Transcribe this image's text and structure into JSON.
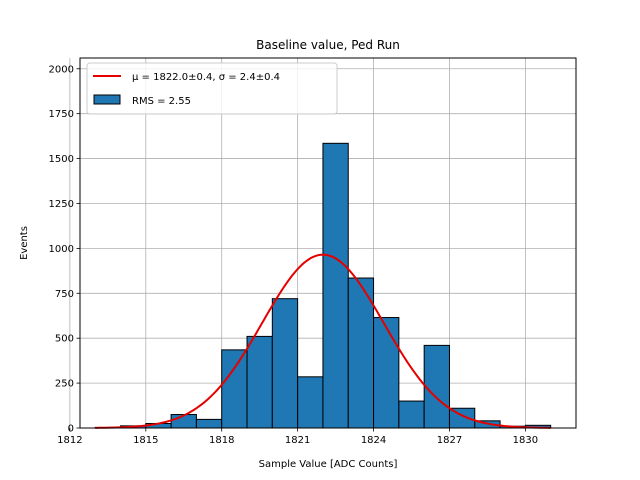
{
  "chart_data": {
    "type": "bar",
    "title": "Baseline value, Ped Run",
    "xlabel": "Sample Value [ADC Counts]",
    "ylabel": "Events",
    "xlim": [
      1812.4,
      1832.0
    ],
    "ylim": [
      0,
      2060
    ],
    "grid": true,
    "xticks": [
      1812,
      1815,
      1818,
      1821,
      1824,
      1827,
      1830
    ],
    "yticks": [
      0,
      250,
      500,
      750,
      1000,
      1250,
      1500,
      1750,
      2000
    ],
    "bin_width": 1,
    "bins": [
      {
        "left": 1813,
        "value": 3
      },
      {
        "left": 1814,
        "value": 12
      },
      {
        "left": 1815,
        "value": 25
      },
      {
        "left": 1816,
        "value": 75
      },
      {
        "left": 1817,
        "value": 48
      },
      {
        "left": 1818,
        "value": 435
      },
      {
        "left": 1819,
        "value": 510
      },
      {
        "left": 1820,
        "value": 720
      },
      {
        "left": 1821,
        "value": 285
      },
      {
        "left": 1822,
        "value": 1585
      },
      {
        "left": 1823,
        "value": 835
      },
      {
        "left": 1824,
        "value": 615
      },
      {
        "left": 1825,
        "value": 150
      },
      {
        "left": 1826,
        "value": 460
      },
      {
        "left": 1827,
        "value": 110
      },
      {
        "left": 1828,
        "value": 40
      },
      {
        "left": 1829,
        "value": 10
      },
      {
        "left": 1830,
        "value": 15
      }
    ],
    "fit": {
      "mu": 1822.0,
      "sigma": 2.4,
      "amplitude": 965,
      "x_start": 1813.0,
      "x_end": 1831.0
    },
    "legend": {
      "placement": "top-left",
      "entries": [
        {
          "label": "μ = 1822.0±0.4, σ = 2.4±0.4",
          "kind": "line",
          "color": "#e50000"
        },
        {
          "label": "RMS = 2.55",
          "kind": "patch",
          "color": "#1f77b4"
        }
      ]
    }
  },
  "colors": {
    "bar_fill": "#1f77b4",
    "bar_edge": "#000000",
    "fit_line": "#e50000",
    "grid": "#b0b0b0"
  }
}
